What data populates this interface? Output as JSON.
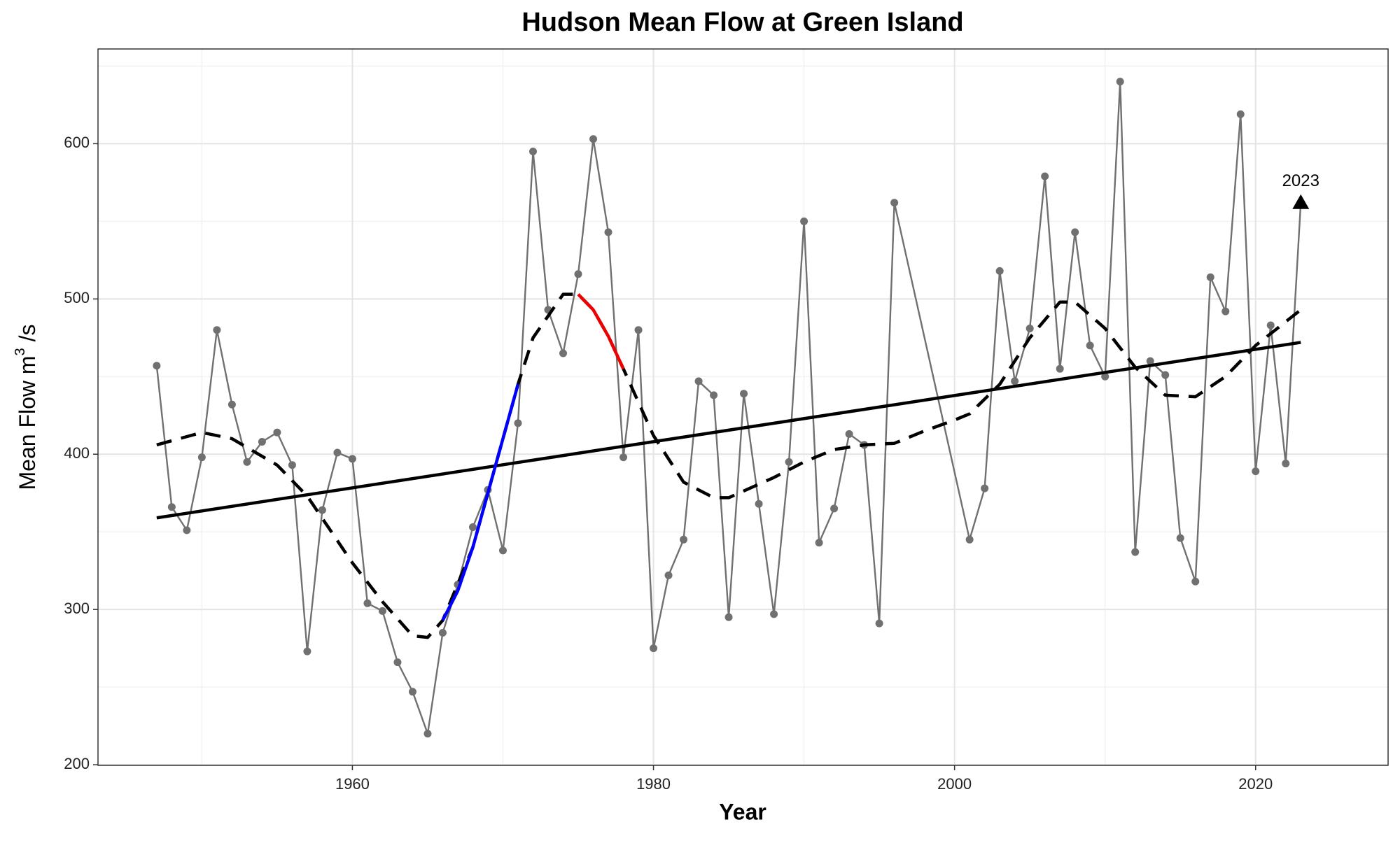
{
  "chart_data": {
    "type": "line",
    "title": "Hudson Mean Flow at Green Island",
    "x_label": "Year",
    "y_label": [
      "Mean Flow  m",
      "3",
      " /s"
    ],
    "xlim": [
      1943.1,
      2028.8
    ],
    "ylim": [
      199.6,
      661
    ],
    "xticks": [
      1960,
      1980,
      2000,
      2020
    ],
    "yticks": [
      200,
      300,
      400,
      500,
      600
    ],
    "xminor": [
      1950,
      1970,
      1990,
      2010
    ],
    "yminor": [
      250,
      350,
      450,
      550,
      650
    ],
    "grid": true,
    "series": [
      {
        "color": "#707070",
        "style": "solid",
        "markers": true,
        "x": [
          1947,
          1948,
          1949,
          1950,
          1951,
          1952,
          1953,
          1954,
          1955,
          1956,
          1957,
          1958,
          1959,
          1960,
          1961,
          1962,
          1963,
          1964,
          1965,
          1966,
          1967,
          1968,
          1969,
          1970,
          1971,
          1972,
          1973,
          1974,
          1975,
          1976,
          1977,
          1978,
          1979,
          1980,
          1981,
          1982,
          1983,
          1984,
          1985,
          1986,
          1987,
          1988,
          1989,
          1990,
          1991,
          1992,
          1993,
          1994,
          1995,
          1996,
          2001,
          2002,
          2003,
          2004,
          2005,
          2006,
          2007,
          2008,
          2009,
          2010,
          2011,
          2012,
          2013,
          2014,
          2015,
          2016,
          2017,
          2018,
          2019,
          2020,
          2021,
          2022,
          2023
        ],
        "values": [
          457,
          366,
          351,
          398,
          480,
          432,
          395,
          408,
          414,
          393,
          273,
          364,
          401,
          397,
          304,
          299,
          266,
          247,
          220,
          285,
          316,
          353,
          377,
          338,
          420,
          595,
          493,
          465,
          516,
          603,
          543,
          398,
          480,
          275,
          322,
          345,
          447,
          438,
          295,
          439,
          368,
          297,
          395,
          550,
          343,
          365,
          413,
          406,
          291,
          562,
          345,
          378,
          518,
          447,
          481,
          579,
          455,
          543,
          470,
          450,
          640,
          337,
          460,
          451,
          346,
          318,
          514,
          492,
          619,
          389,
          483,
          394,
          562
        ]
      },
      {
        "color": "#000000",
        "style": "solid",
        "markers": false,
        "x": [
          1947,
          2023
        ],
        "values": [
          359,
          472
        ]
      },
      {
        "color": "#000000",
        "style": "dashed",
        "markers": false,
        "x": [
          1947,
          1950,
          1952,
          1955,
          1957,
          1960,
          1962,
          1964,
          1965,
          1966,
          1968,
          1970,
          1971,
          1972,
          1974,
          1975,
          1976,
          1977,
          1978,
          1980,
          1982,
          1984,
          1985,
          1988,
          1990,
          1992,
          1994,
          1996,
          1998,
          2000,
          2001,
          2003,
          2005,
          2007,
          2008,
          2010,
          2012,
          2014,
          2016,
          2018,
          2020,
          2023
        ],
        "values": [
          406,
          414,
          410,
          393,
          373,
          330,
          305,
          283,
          282,
          293,
          340,
          410,
          445,
          475,
          503,
          503,
          493,
          476,
          455,
          412,
          382,
          372,
          372,
          385,
          395,
          403,
          406,
          407,
          415,
          422,
          426,
          445,
          475,
          498,
          498,
          481,
          456,
          438,
          437,
          450,
          470,
          493
        ]
      },
      {
        "color": "#0000ff",
        "style": "solid",
        "markers": false,
        "x": [
          1966,
          1967,
          1968,
          1969,
          1970,
          1971
        ],
        "values": [
          293,
          312,
          340,
          375,
          410,
          445
        ]
      },
      {
        "color": "#ee0000",
        "style": "solid",
        "markers": false,
        "x": [
          1975,
          1976,
          1977,
          1978
        ],
        "values": [
          503,
          493,
          476,
          455
        ]
      }
    ],
    "annotation": {
      "label": "2023",
      "x": 2023,
      "y": 562
    }
  }
}
